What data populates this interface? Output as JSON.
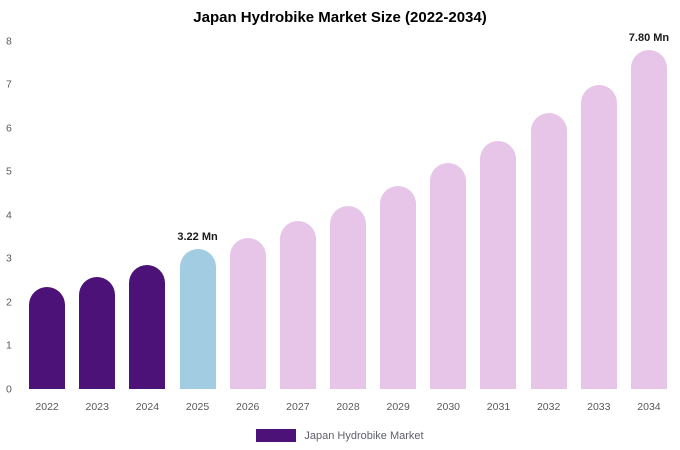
{
  "title": "Japan Hydrobike Market Size (2022-2034)",
  "chart_data": {
    "type": "bar",
    "title": "Japan Hydrobike Market Size (2022-2034)",
    "categories": [
      "2022",
      "2023",
      "2024",
      "2025",
      "2026",
      "2027",
      "2028",
      "2029",
      "2030",
      "2031",
      "2032",
      "2033",
      "2034"
    ],
    "values": [
      2.35,
      2.57,
      2.85,
      3.22,
      3.47,
      3.86,
      4.2,
      4.67,
      5.2,
      5.7,
      6.35,
      7.0,
      7.8
    ],
    "bar_colors": [
      "#4c1277",
      "#4c1277",
      "#4c1277",
      "#a2cce2",
      "#e7c5e8",
      "#e7c5e8",
      "#e7c5e8",
      "#e7c5e8",
      "#e7c5e8",
      "#e7c5e8",
      "#e7c5e8",
      "#e7c5e8",
      "#e7c5e8"
    ],
    "ylim": [
      0,
      8
    ],
    "yticks": [
      0,
      1,
      2,
      3,
      4,
      5,
      6,
      7,
      8
    ],
    "grid": "off",
    "legend_position": "bottom",
    "annotations": [
      {
        "index": 3,
        "text": "3.22 Mn"
      },
      {
        "index": 12,
        "text": "7.80 Mn"
      }
    ],
    "legend": {
      "label": "Japan Hydrobike Market",
      "color": "#4c1277"
    }
  }
}
